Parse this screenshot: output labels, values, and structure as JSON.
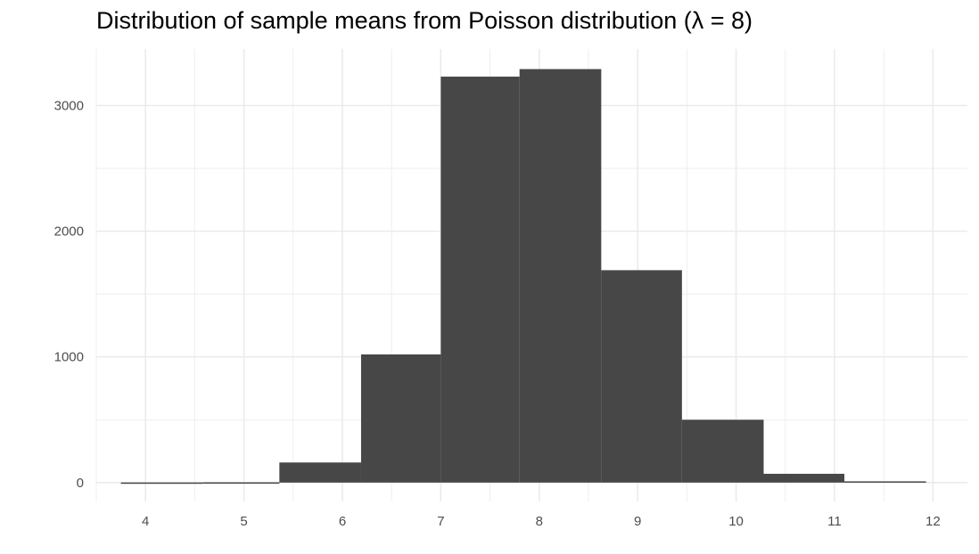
{
  "chart_data": {
    "type": "bar",
    "title": "Distribution of sample means from Poisson distribution (λ = 8)",
    "xlabel": "",
    "ylabel": "",
    "bins": [
      {
        "x0": 3.75,
        "x1": 4.58,
        "count": 1
      },
      {
        "x0": 4.58,
        "x1": 5.36,
        "count": 2
      },
      {
        "x0": 5.36,
        "x1": 6.19,
        "count": 160
      },
      {
        "x0": 6.19,
        "x1": 7.0,
        "count": 1020
      },
      {
        "x0": 7.0,
        "x1": 7.8,
        "count": 3230
      },
      {
        "x0": 7.8,
        "x1": 8.63,
        "count": 3290
      },
      {
        "x0": 8.63,
        "x1": 9.45,
        "count": 1690
      },
      {
        "x0": 9.45,
        "x1": 10.28,
        "count": 500
      },
      {
        "x0": 10.28,
        "x1": 11.1,
        "count": 70
      },
      {
        "x0": 11.1,
        "x1": 11.93,
        "count": 10
      }
    ],
    "x_ticks": [
      "4",
      "5",
      "6",
      "7",
      "8",
      "9",
      "10",
      "11",
      "12"
    ],
    "y_ticks": [
      "0",
      "1000",
      "2000",
      "3000"
    ],
    "xlim": [
      3.5,
      12.35
    ],
    "ylim": [
      -150,
      3450
    ],
    "grid": true,
    "legend": "none",
    "colors": {
      "bar": "#474747",
      "grid": "#ebebeb",
      "tick_text": "#4d4d4d"
    }
  }
}
